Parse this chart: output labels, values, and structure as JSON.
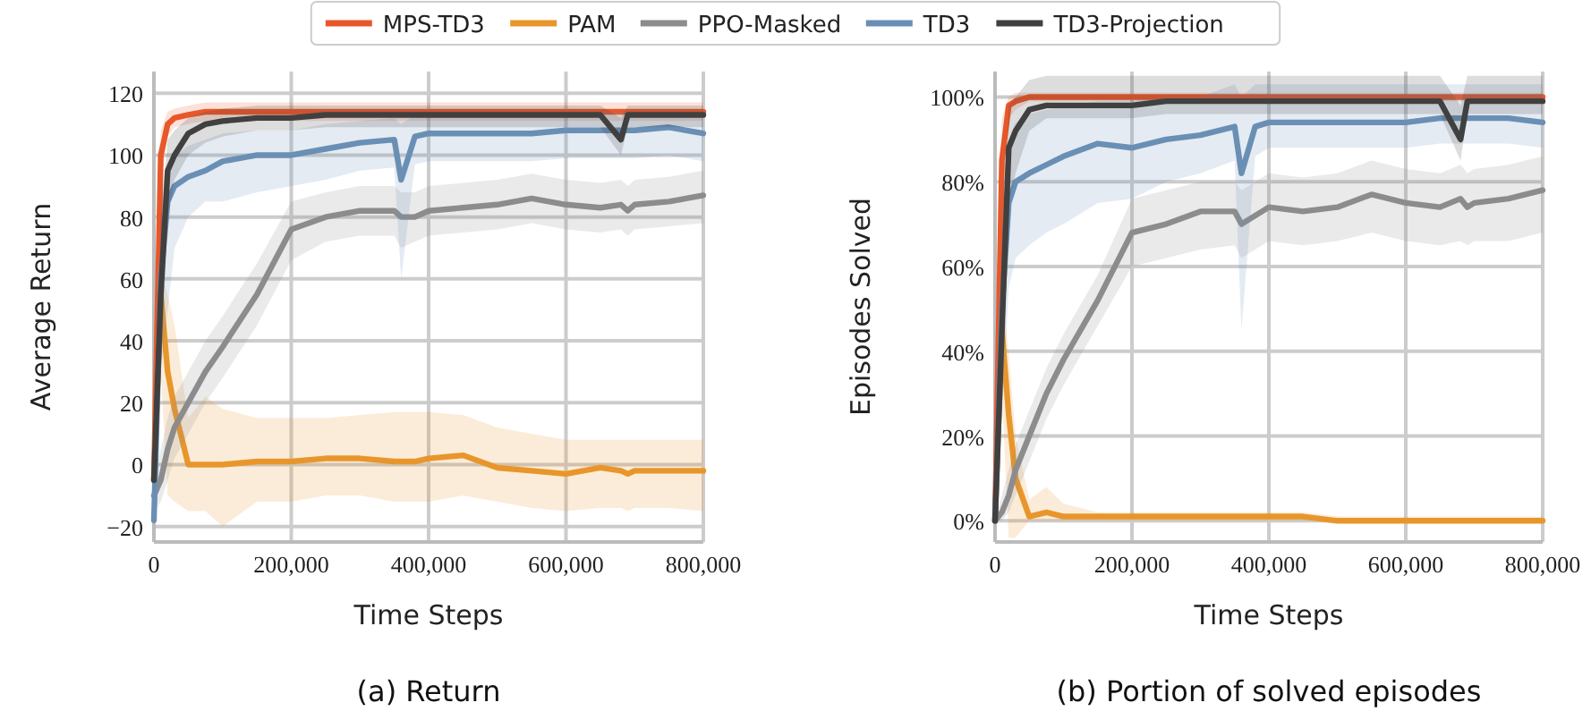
{
  "chart_data": [
    {
      "type": "line",
      "title": "(a) Return",
      "xlabel": "Time Steps",
      "ylabel": "Average Return",
      "legend": "top",
      "grid": true,
      "x": [
        0,
        10000,
        20000,
        30000,
        50000,
        75000,
        100000,
        150000,
        200000,
        250000,
        300000,
        350000,
        360000,
        380000,
        400000,
        450000,
        500000,
        550000,
        600000,
        650000,
        680000,
        690000,
        700000,
        750000,
        800000
      ],
      "xlim": [
        0,
        800000
      ],
      "ylim": [
        -25,
        127
      ],
      "xticks": [
        0,
        {
          "value": 200000,
          "label": "200,000"
        },
        {
          "value": 400000,
          "label": "400,000"
        },
        {
          "value": 600000,
          "label": "600,000"
        },
        {
          "value": 800000,
          "label": "800,000"
        }
      ],
      "yticks": [
        {
          "value": -20,
          "label": "−20"
        },
        0,
        20,
        40,
        60,
        80,
        100,
        120
      ],
      "series": [
        {
          "name": "MPS-TD3",
          "color": "#e8572a",
          "values": [
            -5,
            100,
            110,
            112,
            113,
            114,
            114,
            114,
            114,
            114,
            114,
            114,
            114,
            114,
            114,
            114,
            114,
            114,
            114,
            114,
            114,
            114,
            114,
            114,
            114
          ],
          "lower": [
            -10,
            90,
            106,
            109,
            110,
            111,
            111,
            111,
            111,
            111,
            111,
            111,
            111,
            111,
            111,
            111,
            111,
            111,
            111,
            111,
            111,
            111,
            111,
            111,
            111
          ],
          "upper": [
            0,
            108,
            114,
            115,
            116,
            117,
            117,
            117,
            117,
            117,
            117,
            117,
            117,
            117,
            117,
            117,
            117,
            117,
            117,
            117,
            117,
            117,
            117,
            117,
            117
          ]
        },
        {
          "name": "PAM",
          "color": "#e8962b",
          "values": [
            -5,
            55,
            30,
            18,
            0,
            0,
            0,
            1,
            1,
            2,
            2,
            1,
            1,
            1,
            2,
            3,
            -1,
            -2,
            -3,
            -1,
            -2,
            -3,
            -2,
            -2,
            -2
          ],
          "lower": [
            -10,
            30,
            -10,
            -12,
            -15,
            -15,
            -20,
            -12,
            -12,
            -10,
            -10,
            -12,
            -12,
            -12,
            -12,
            -10,
            -12,
            -14,
            -15,
            -14,
            -14,
            -15,
            -14,
            -14,
            -15
          ],
          "upper": [
            0,
            62,
            55,
            45,
            15,
            22,
            18,
            15,
            15,
            15,
            16,
            17,
            17,
            17,
            17,
            16,
            12,
            10,
            8,
            8,
            8,
            8,
            8,
            8,
            8
          ]
        },
        {
          "name": "PPO-Masked",
          "color": "#8c8c8c",
          "values": [
            -10,
            -5,
            5,
            12,
            20,
            30,
            38,
            55,
            76,
            80,
            82,
            82,
            80,
            80,
            82,
            83,
            84,
            86,
            84,
            83,
            84,
            82,
            84,
            85,
            87
          ],
          "lower": [
            -15,
            -12,
            -5,
            2,
            10,
            20,
            28,
            45,
            66,
            72,
            74,
            74,
            70,
            72,
            74,
            75,
            76,
            78,
            76,
            75,
            76,
            74,
            76,
            77,
            78
          ],
          "upper": [
            -5,
            5,
            15,
            22,
            30,
            40,
            48,
            65,
            85,
            88,
            90,
            90,
            88,
            88,
            90,
            91,
            92,
            94,
            92,
            91,
            92,
            90,
            92,
            93,
            95
          ]
        },
        {
          "name": "TD3",
          "color": "#6a8fb5",
          "values": [
            -18,
            60,
            85,
            90,
            93,
            95,
            98,
            100,
            100,
            102,
            104,
            105,
            92,
            106,
            107,
            107,
            107,
            107,
            108,
            108,
            108,
            108,
            108,
            109,
            107
          ],
          "lower": [
            -20,
            30,
            50,
            70,
            80,
            85,
            85,
            88,
            90,
            92,
            95,
            96,
            60,
            97,
            98,
            98,
            98,
            98,
            99,
            99,
            99,
            99,
            99,
            100,
            98
          ],
          "upper": [
            -15,
            80,
            95,
            100,
            103,
            105,
            107,
            108,
            108,
            110,
            111,
            112,
            110,
            113,
            113,
            113,
            113,
            113,
            114,
            114,
            114,
            114,
            114,
            114,
            113
          ]
        },
        {
          "name": "TD3-Projection",
          "color": "#404040",
          "values": [
            -5,
            55,
            95,
            100,
            107,
            110,
            111,
            112,
            112,
            113,
            113,
            113,
            113,
            113,
            113,
            113,
            113,
            113,
            113,
            113,
            105,
            113,
            113,
            113,
            113
          ],
          "lower": [
            -10,
            30,
            80,
            92,
            100,
            104,
            106,
            108,
            108,
            109,
            109,
            109,
            109,
            109,
            109,
            109,
            109,
            109,
            109,
            109,
            100,
            109,
            109,
            109,
            109
          ],
          "upper": [
            0,
            80,
            105,
            108,
            112,
            114,
            115,
            116,
            116,
            116,
            116,
            116,
            116,
            116,
            116,
            116,
            116,
            116,
            116,
            116,
            112,
            116,
            116,
            116,
            116
          ]
        }
      ]
    },
    {
      "type": "line",
      "title": "(b) Portion of solved episodes",
      "xlabel": "Time Steps",
      "ylabel": "Episodes Solved",
      "grid": true,
      "x": [
        0,
        10000,
        20000,
        30000,
        50000,
        75000,
        100000,
        150000,
        200000,
        250000,
        300000,
        350000,
        360000,
        380000,
        400000,
        450000,
        500000,
        550000,
        600000,
        650000,
        680000,
        690000,
        700000,
        750000,
        800000
      ],
      "xlim": [
        0,
        800000
      ],
      "ylim": [
        -5,
        106
      ],
      "xticks": [
        0,
        {
          "value": 200000,
          "label": "200,000"
        },
        {
          "value": 400000,
          "label": "400,000"
        },
        {
          "value": 600000,
          "label": "600,000"
        },
        {
          "value": 800000,
          "label": "800,000"
        }
      ],
      "yticks": [
        {
          "value": 0,
          "label": "0%"
        },
        {
          "value": 20,
          "label": "20%"
        },
        {
          "value": 40,
          "label": "40%"
        },
        {
          "value": 60,
          "label": "60%"
        },
        {
          "value": 80,
          "label": "80%"
        },
        {
          "value": 100,
          "label": "100%"
        }
      ],
      "series": [
        {
          "color": "#e8572a",
          "values": [
            0,
            85,
            98,
            99,
            100,
            100,
            100,
            100,
            100,
            100,
            100,
            100,
            100,
            100,
            100,
            100,
            100,
            100,
            100,
            100,
            100,
            100,
            100,
            100,
            100
          ],
          "lower": [
            0,
            75,
            95,
            97,
            99,
            99,
            99,
            99,
            99,
            99,
            99,
            99,
            99,
            99,
            99,
            99,
            99,
            99,
            99,
            99,
            99,
            99,
            99,
            99,
            99
          ],
          "upper": [
            0,
            95,
            100,
            101,
            101,
            101,
            101,
            101,
            101,
            101,
            101,
            101,
            101,
            101,
            101,
            101,
            101,
            101,
            101,
            101,
            101,
            101,
            101,
            101,
            101
          ]
        },
        {
          "color": "#e8962b",
          "values": [
            0,
            45,
            25,
            10,
            1,
            2,
            1,
            1,
            1,
            1,
            1,
            1,
            1,
            1,
            1,
            1,
            0,
            0,
            0,
            0,
            0,
            0,
            0,
            0,
            0
          ],
          "lower": [
            0,
            30,
            -4,
            -4,
            0,
            0,
            0,
            0,
            0,
            0,
            0,
            0,
            0,
            0,
            0,
            0,
            0,
            0,
            0,
            0,
            0,
            0,
            0,
            0,
            0
          ],
          "upper": [
            0,
            55,
            40,
            20,
            5,
            8,
            4,
            2,
            2,
            2,
            2,
            2,
            2,
            2,
            2,
            2,
            1,
            1,
            1,
            1,
            1,
            1,
            1,
            1,
            1
          ]
        },
        {
          "color": "#8c8c8c",
          "values": [
            0,
            2,
            6,
            12,
            20,
            30,
            38,
            52,
            68,
            70,
            73,
            73,
            70,
            72,
            74,
            73,
            74,
            77,
            75,
            74,
            76,
            74,
            75,
            76,
            78
          ],
          "lower": [
            0,
            0,
            2,
            6,
            14,
            24,
            32,
            46,
            60,
            62,
            64,
            65,
            62,
            64,
            66,
            65,
            66,
            68,
            66,
            65,
            66,
            65,
            66,
            66,
            68
          ],
          "upper": [
            0,
            6,
            12,
            18,
            26,
            36,
            44,
            58,
            76,
            78,
            80,
            80,
            78,
            80,
            82,
            81,
            82,
            85,
            83,
            82,
            84,
            82,
            83,
            84,
            86
          ]
        },
        {
          "color": "#6a8fb5",
          "values": [
            0,
            50,
            75,
            80,
            82,
            84,
            86,
            89,
            88,
            90,
            91,
            93,
            82,
            93,
            94,
            94,
            94,
            94,
            94,
            95,
            95,
            95,
            95,
            95,
            94
          ],
          "lower": [
            0,
            25,
            55,
            62,
            65,
            68,
            70,
            75,
            76,
            80,
            82,
            85,
            45,
            86,
            88,
            88,
            88,
            88,
            88,
            89,
            89,
            89,
            89,
            89,
            88
          ],
          "upper": [
            0,
            70,
            90,
            94,
            96,
            97,
            98,
            99,
            99,
            100,
            100,
            103,
            100,
            103,
            103,
            103,
            103,
            103,
            103,
            103,
            103,
            103,
            103,
            103,
            103
          ]
        },
        {
          "color": "#404040",
          "values": [
            0,
            45,
            88,
            92,
            97,
            98,
            98,
            98,
            98,
            99,
            99,
            99,
            99,
            99,
            99,
            99,
            99,
            99,
            99,
            99,
            90,
            99,
            99,
            99,
            99
          ],
          "lower": [
            0,
            25,
            75,
            82,
            92,
            95,
            95,
            95,
            95,
            96,
            96,
            96,
            96,
            96,
            96,
            96,
            96,
            96,
            96,
            96,
            85,
            96,
            96,
            96,
            96
          ],
          "upper": [
            0,
            65,
            98,
            100,
            104,
            105,
            105,
            105,
            105,
            105,
            105,
            105,
            105,
            105,
            105,
            105,
            105,
            105,
            105,
            105,
            98,
            105,
            105,
            105,
            105
          ]
        }
      ]
    }
  ]
}
